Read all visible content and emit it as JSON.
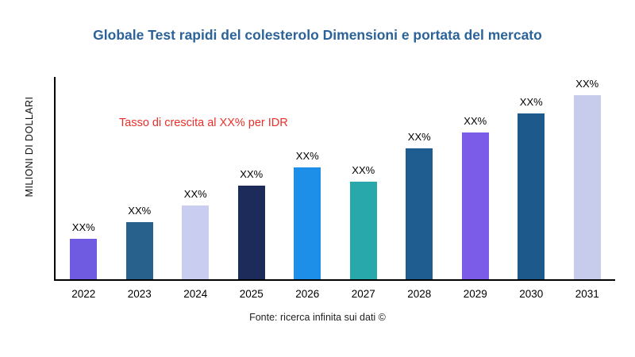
{
  "title": "Globale Test rapidi del colesterolo Dimensioni e portata del mercato",
  "y_axis_label": "MILIONI DI DOLLARI",
  "annotation": "Tasso di crescita al XX% per IDR",
  "source": "Fonte: ricerca infinita sui dati ©",
  "chart_data": {
    "type": "bar",
    "title": "Globale Test rapidi del colesterolo Dimensioni e portata del mercato",
    "xlabel": "",
    "ylabel": "MILIONI DI DOLLARI",
    "categories": [
      "2022",
      "2023",
      "2024",
      "2025",
      "2026",
      "2027",
      "2028",
      "2029",
      "2030",
      "2031"
    ],
    "values": [
      22,
      31,
      40,
      51,
      61,
      53,
      71,
      80,
      90,
      100
    ],
    "bar_labels": [
      "XX%",
      "XX%",
      "XX%",
      "XX%",
      "XX%",
      "XX%",
      "XX%",
      "XX%",
      "XX%",
      "XX%"
    ],
    "colors": [
      "#6e5be2",
      "#27618c",
      "#c9cdef",
      "#1c2b5a",
      "#1e8fe8",
      "#29a8ab",
      "#1f5c8f",
      "#7a5ce8",
      "#1e598c",
      "#c7cbec"
    ],
    "ylim": [
      0,
      110
    ],
    "grid": false,
    "legend": "none",
    "annotation_text": "Tasso di crescita al XX% per IDR",
    "annotation_color": "#e8302a",
    "title_color": "#2b6298"
  }
}
